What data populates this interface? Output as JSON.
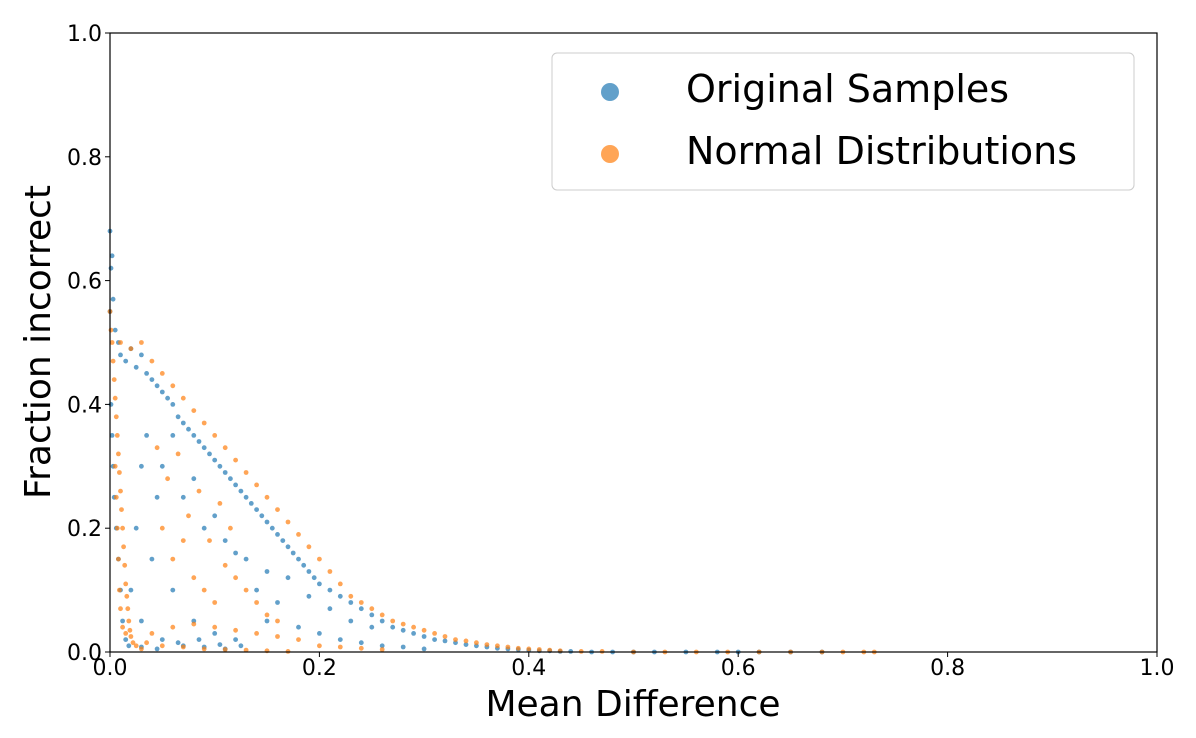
{
  "chart_data": {
    "type": "scatter",
    "title": "",
    "xlabel": "Mean Difference",
    "ylabel": "Fraction incorrect",
    "xlim": [
      0.0,
      1.0
    ],
    "ylim": [
      0.0,
      1.0
    ],
    "xticks": [
      0.0,
      0.2,
      0.4,
      0.6,
      0.8,
      1.0
    ],
    "yticks": [
      0.0,
      0.2,
      0.4,
      0.6,
      0.8,
      1.0
    ],
    "xtick_labels": [
      "0.0",
      "0.2",
      "0.4",
      "0.6",
      "0.8",
      "1.0"
    ],
    "ytick_labels": [
      "0.0",
      "0.2",
      "0.4",
      "0.6",
      "0.8",
      "1.0"
    ],
    "grid": false,
    "legend_position": "top-right",
    "series": [
      {
        "name": "Original Samples",
        "color": "#1f77b4",
        "points": [
          [
            0.0,
            0.68
          ],
          [
            0.002,
            0.64
          ],
          [
            0.001,
            0.62
          ],
          [
            0.003,
            0.57
          ],
          [
            0.0,
            0.55
          ],
          [
            0.005,
            0.52
          ],
          [
            0.008,
            0.5
          ],
          [
            0.01,
            0.48
          ],
          [
            0.015,
            0.47
          ],
          [
            0.02,
            0.49
          ],
          [
            0.025,
            0.46
          ],
          [
            0.03,
            0.48
          ],
          [
            0.035,
            0.45
          ],
          [
            0.04,
            0.44
          ],
          [
            0.045,
            0.43
          ],
          [
            0.05,
            0.42
          ],
          [
            0.055,
            0.41
          ],
          [
            0.06,
            0.4
          ],
          [
            0.065,
            0.38
          ],
          [
            0.07,
            0.37
          ],
          [
            0.075,
            0.36
          ],
          [
            0.08,
            0.35
          ],
          [
            0.085,
            0.34
          ],
          [
            0.09,
            0.33
          ],
          [
            0.095,
            0.32
          ],
          [
            0.1,
            0.31
          ],
          [
            0.105,
            0.3
          ],
          [
            0.11,
            0.29
          ],
          [
            0.115,
            0.28
          ],
          [
            0.12,
            0.27
          ],
          [
            0.125,
            0.26
          ],
          [
            0.13,
            0.25
          ],
          [
            0.135,
            0.24
          ],
          [
            0.14,
            0.23
          ],
          [
            0.145,
            0.22
          ],
          [
            0.15,
            0.21
          ],
          [
            0.155,
            0.2
          ],
          [
            0.16,
            0.19
          ],
          [
            0.165,
            0.18
          ],
          [
            0.17,
            0.17
          ],
          [
            0.175,
            0.16
          ],
          [
            0.18,
            0.15
          ],
          [
            0.185,
            0.14
          ],
          [
            0.19,
            0.13
          ],
          [
            0.195,
            0.12
          ],
          [
            0.2,
            0.11
          ],
          [
            0.21,
            0.1
          ],
          [
            0.22,
            0.09
          ],
          [
            0.23,
            0.08
          ],
          [
            0.24,
            0.07
          ],
          [
            0.25,
            0.06
          ],
          [
            0.26,
            0.05
          ],
          [
            0.27,
            0.04
          ],
          [
            0.28,
            0.035
          ],
          [
            0.29,
            0.03
          ],
          [
            0.3,
            0.025
          ],
          [
            0.31,
            0.02
          ],
          [
            0.32,
            0.018
          ],
          [
            0.33,
            0.015
          ],
          [
            0.34,
            0.012
          ],
          [
            0.35,
            0.01
          ],
          [
            0.36,
            0.008
          ],
          [
            0.37,
            0.006
          ],
          [
            0.38,
            0.005
          ],
          [
            0.39,
            0.004
          ],
          [
            0.4,
            0.003
          ],
          [
            0.41,
            0.002
          ],
          [
            0.42,
            0.002
          ],
          [
            0.43,
            0.001
          ],
          [
            0.44,
            0.001
          ],
          [
            0.46,
            0.0
          ],
          [
            0.48,
            0.0
          ],
          [
            0.5,
            0.0
          ],
          [
            0.52,
            0.0
          ],
          [
            0.55,
            0.0
          ],
          [
            0.58,
            0.0
          ],
          [
            0.6,
            0.0
          ],
          [
            0.62,
            0.0
          ],
          [
            0.65,
            0.0
          ],
          [
            0.68,
            0.0
          ],
          [
            0.05,
            0.3
          ],
          [
            0.07,
            0.25
          ],
          [
            0.09,
            0.2
          ],
          [
            0.11,
            0.18
          ],
          [
            0.13,
            0.15
          ],
          [
            0.15,
            0.13
          ],
          [
            0.06,
            0.35
          ],
          [
            0.08,
            0.28
          ],
          [
            0.1,
            0.22
          ],
          [
            0.12,
            0.16
          ],
          [
            0.14,
            0.1
          ],
          [
            0.16,
            0.08
          ],
          [
            0.04,
            0.15
          ],
          [
            0.06,
            0.1
          ],
          [
            0.08,
            0.05
          ],
          [
            0.1,
            0.03
          ],
          [
            0.12,
            0.02
          ],
          [
            0.03,
            0.05
          ],
          [
            0.05,
            0.02
          ],
          [
            0.07,
            0.01
          ],
          [
            0.09,
            0.008
          ],
          [
            0.11,
            0.005
          ],
          [
            0.02,
            0.1
          ],
          [
            0.025,
            0.2
          ],
          [
            0.03,
            0.3
          ],
          [
            0.035,
            0.35
          ],
          [
            0.045,
            0.25
          ],
          [
            0.17,
            0.12
          ],
          [
            0.19,
            0.09
          ],
          [
            0.21,
            0.07
          ],
          [
            0.23,
            0.05
          ],
          [
            0.25,
            0.04
          ],
          [
            0.15,
            0.05
          ],
          [
            0.18,
            0.04
          ],
          [
            0.2,
            0.03
          ],
          [
            0.22,
            0.02
          ],
          [
            0.24,
            0.015
          ],
          [
            0.26,
            0.01
          ],
          [
            0.28,
            0.008
          ],
          [
            0.3,
            0.005
          ],
          [
            0.001,
            0.4
          ],
          [
            0.002,
            0.35
          ],
          [
            0.003,
            0.3
          ],
          [
            0.004,
            0.25
          ],
          [
            0.006,
            0.2
          ],
          [
            0.008,
            0.15
          ],
          [
            0.01,
            0.1
          ],
          [
            0.012,
            0.05
          ],
          [
            0.015,
            0.02
          ],
          [
            0.018,
            0.01
          ],
          [
            0.03,
            0.008
          ],
          [
            0.045,
            0.005
          ],
          [
            0.065,
            0.015
          ],
          [
            0.085,
            0.02
          ],
          [
            0.105,
            0.012
          ],
          [
            0.125,
            0.01
          ]
        ]
      },
      {
        "name": "Normal Distributions",
        "color": "#ff7f0e",
        "points": [
          [
            0.0,
            0.55
          ],
          [
            0.001,
            0.52
          ],
          [
            0.002,
            0.5
          ],
          [
            0.003,
            0.47
          ],
          [
            0.004,
            0.44
          ],
          [
            0.005,
            0.41
          ],
          [
            0.006,
            0.38
          ],
          [
            0.007,
            0.35
          ],
          [
            0.008,
            0.32
          ],
          [
            0.009,
            0.29
          ],
          [
            0.01,
            0.26
          ],
          [
            0.011,
            0.23
          ],
          [
            0.012,
            0.2
          ],
          [
            0.013,
            0.17
          ],
          [
            0.014,
            0.14
          ],
          [
            0.015,
            0.11
          ],
          [
            0.016,
            0.09
          ],
          [
            0.017,
            0.07
          ],
          [
            0.018,
            0.05
          ],
          [
            0.019,
            0.035
          ],
          [
            0.02,
            0.025
          ],
          [
            0.022,
            0.015
          ],
          [
            0.025,
            0.01
          ],
          [
            0.03,
            0.005
          ],
          [
            0.01,
            0.5
          ],
          [
            0.02,
            0.49
          ],
          [
            0.03,
            0.5
          ],
          [
            0.04,
            0.47
          ],
          [
            0.05,
            0.45
          ],
          [
            0.06,
            0.43
          ],
          [
            0.07,
            0.41
          ],
          [
            0.08,
            0.39
          ],
          [
            0.09,
            0.37
          ],
          [
            0.1,
            0.35
          ],
          [
            0.11,
            0.33
          ],
          [
            0.12,
            0.31
          ],
          [
            0.13,
            0.29
          ],
          [
            0.14,
            0.27
          ],
          [
            0.15,
            0.25
          ],
          [
            0.16,
            0.23
          ],
          [
            0.17,
            0.21
          ],
          [
            0.18,
            0.19
          ],
          [
            0.19,
            0.17
          ],
          [
            0.2,
            0.15
          ],
          [
            0.21,
            0.13
          ],
          [
            0.22,
            0.11
          ],
          [
            0.23,
            0.09
          ],
          [
            0.24,
            0.08
          ],
          [
            0.25,
            0.07
          ],
          [
            0.26,
            0.06
          ],
          [
            0.27,
            0.05
          ],
          [
            0.28,
            0.045
          ],
          [
            0.29,
            0.04
          ],
          [
            0.3,
            0.035
          ],
          [
            0.31,
            0.03
          ],
          [
            0.32,
            0.025
          ],
          [
            0.33,
            0.02
          ],
          [
            0.34,
            0.018
          ],
          [
            0.35,
            0.015
          ],
          [
            0.36,
            0.012
          ],
          [
            0.37,
            0.01
          ],
          [
            0.38,
            0.008
          ],
          [
            0.39,
            0.006
          ],
          [
            0.4,
            0.005
          ],
          [
            0.41,
            0.004
          ],
          [
            0.42,
            0.003
          ],
          [
            0.43,
            0.002
          ],
          [
            0.45,
            0.001
          ],
          [
            0.47,
            0.001
          ],
          [
            0.5,
            0.0
          ],
          [
            0.53,
            0.0
          ],
          [
            0.56,
            0.0
          ],
          [
            0.59,
            0.0
          ],
          [
            0.62,
            0.0
          ],
          [
            0.65,
            0.0
          ],
          [
            0.68,
            0.0
          ],
          [
            0.7,
            0.0
          ],
          [
            0.72,
            0.0
          ],
          [
            0.73,
            0.0
          ],
          [
            0.04,
            0.03
          ],
          [
            0.06,
            0.04
          ],
          [
            0.08,
            0.045
          ],
          [
            0.1,
            0.04
          ],
          [
            0.12,
            0.035
          ],
          [
            0.14,
            0.03
          ],
          [
            0.16,
            0.025
          ],
          [
            0.18,
            0.02
          ],
          [
            0.05,
            0.2
          ],
          [
            0.06,
            0.15
          ],
          [
            0.07,
            0.18
          ],
          [
            0.08,
            0.12
          ],
          [
            0.09,
            0.1
          ],
          [
            0.1,
            0.08
          ],
          [
            0.11,
            0.14
          ],
          [
            0.12,
            0.12
          ],
          [
            0.13,
            0.1
          ],
          [
            0.14,
            0.08
          ],
          [
            0.15,
            0.06
          ],
          [
            0.16,
            0.05
          ],
          [
            0.045,
            0.33
          ],
          [
            0.055,
            0.28
          ],
          [
            0.065,
            0.32
          ],
          [
            0.075,
            0.22
          ],
          [
            0.085,
            0.26
          ],
          [
            0.095,
            0.18
          ],
          [
            0.105,
            0.24
          ],
          [
            0.115,
            0.2
          ],
          [
            0.2,
            0.01
          ],
          [
            0.22,
            0.008
          ],
          [
            0.24,
            0.006
          ],
          [
            0.26,
            0.004
          ],
          [
            0.005,
            0.3
          ],
          [
            0.006,
            0.25
          ],
          [
            0.007,
            0.2
          ],
          [
            0.008,
            0.15
          ],
          [
            0.009,
            0.1
          ],
          [
            0.01,
            0.07
          ],
          [
            0.012,
            0.04
          ],
          [
            0.015,
            0.03
          ],
          [
            0.035,
            0.015
          ],
          [
            0.05,
            0.01
          ],
          [
            0.07,
            0.008
          ],
          [
            0.09,
            0.005
          ],
          [
            0.11,
            0.004
          ],
          [
            0.13,
            0.003
          ],
          [
            0.15,
            0.002
          ],
          [
            0.17,
            0.001
          ]
        ]
      }
    ]
  }
}
